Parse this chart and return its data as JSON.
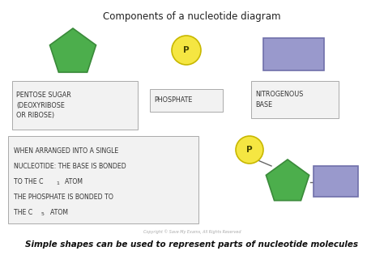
{
  "title": "Components of a nucleotide diagram",
  "title_fontsize": 8.5,
  "pentagon_color": "#4cae4c",
  "pentagon_edge_color": "#3a8a3a",
  "circle_color": "#f5e642",
  "circle_edge_color": "#c8b800",
  "rect_color": "#9999cc",
  "rect_edge_color": "#7070aa",
  "box_bg": "#f2f2f2",
  "box_edge": "#aaaaaa",
  "label1": "PENTOSE SUGAR\n(DEOXYRIBOSE\nOR RIBOSE)",
  "label2": "PHOSPHATE",
  "label3": "NITROGENOUS\nBASE",
  "note_line1": "WHEN ARRANGED INTO A SINGLE",
  "note_line2": "NUCLEOTIDE: THE BASE IS BONDED",
  "note_line3a": "TO THE C",
  "note_line3b": "1",
  "note_line3c": "  ATOM",
  "note_line4": "THE PHOSPHATE IS BONDED TO",
  "note_line5a": "THE C",
  "note_line5b": "5",
  "note_line5c": "  ATOM",
  "footer": "Simple shapes can be used to represent parts of nucleotide molecules",
  "copyright": "Copyright © Save My Exams, All Rights Reserved",
  "background_color": "#ffffff"
}
